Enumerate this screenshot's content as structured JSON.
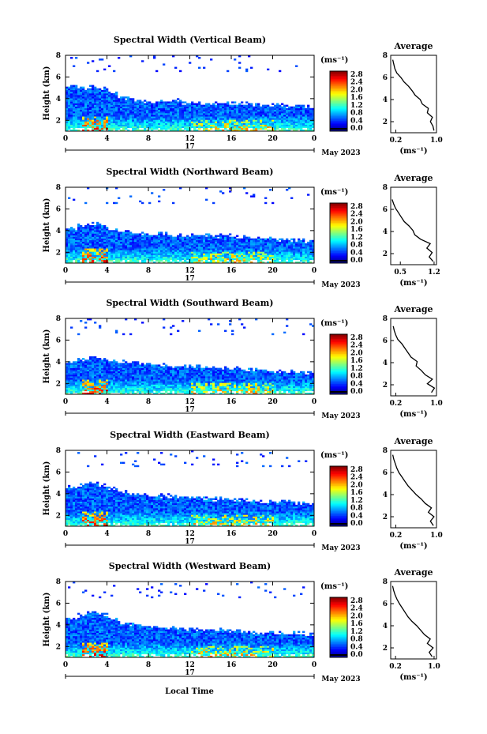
{
  "figure": {
    "xlabel": "Local Time",
    "date_label": "May 2023",
    "day_label": "17",
    "average_title": "Average"
  },
  "chart_data": [
    {
      "type": "heatmap",
      "title": "Spectral Width (Vertical Beam)",
      "ylabel": "Height (km)",
      "xticks": [
        "0",
        "4",
        "8",
        "12",
        "16",
        "20",
        "0"
      ],
      "xlim": [
        0,
        24
      ],
      "yticks": [
        "2",
        "4",
        "6",
        "8"
      ],
      "ylim": [
        1,
        8
      ],
      "colorbar": {
        "unit": "(ms⁻¹)",
        "ticks": [
          "2.8",
          "2.4",
          "2.0",
          "1.6",
          "1.2",
          "0.8",
          "0.4",
          "0.0"
        ]
      },
      "echo_top_km": [
        5.2,
        5.0,
        5.1,
        4.9,
        4.5,
        4.1,
        3.9,
        3.8,
        3.7,
        3.7,
        3.8,
        3.6,
        3.7,
        3.6,
        3.6,
        3.6,
        3.6,
        3.5,
        3.4,
        3.4,
        3.5,
        3.4,
        3.4,
        3.3
      ],
      "profile": {
        "title": "Average",
        "xlabel": "(ms⁻¹)",
        "xticks": [
          "0.2",
          "1.0"
        ],
        "xlim": [
          0.1,
          1.0
        ],
        "yticks": [
          "2",
          "4",
          "6",
          "8"
        ],
        "ylim": [
          1,
          8
        ],
        "height_km": [
          1.2,
          1.6,
          2.0,
          2.4,
          2.8,
          3.2,
          3.6,
          4.0,
          4.4,
          4.8,
          5.2,
          5.6,
          6.0,
          6.4,
          6.8,
          7.2,
          7.6
        ],
        "width": [
          0.95,
          0.93,
          0.88,
          0.92,
          0.82,
          0.84,
          0.72,
          0.68,
          0.58,
          0.52,
          0.45,
          0.36,
          0.3,
          0.22,
          0.18,
          0.16,
          0.14
        ]
      }
    },
    {
      "type": "heatmap",
      "title": "Spectral Width (Northward Beam)",
      "ylabel": "Height (km)",
      "xticks": [
        "0",
        "4",
        "8",
        "12",
        "16",
        "20",
        "0"
      ],
      "xlim": [
        0,
        24
      ],
      "yticks": [
        "2",
        "4",
        "6",
        "8"
      ],
      "ylim": [
        1,
        8
      ],
      "colorbar": {
        "unit": "(ms⁻¹)",
        "ticks": [
          "2.8",
          "2.4",
          "2.0",
          "1.6",
          "1.2",
          "0.8",
          "0.4",
          "0.0"
        ]
      },
      "echo_top_km": [
        4.2,
        4.4,
        4.6,
        4.5,
        4.2,
        4.0,
        3.8,
        3.8,
        3.7,
        3.7,
        3.6,
        3.6,
        3.6,
        3.6,
        3.5,
        3.5,
        3.4,
        3.4,
        3.3,
        3.3,
        3.2,
        3.2,
        3.2,
        3.0
      ],
      "profile": {
        "title": "Average",
        "xlabel": "(ms⁻¹)",
        "xticks": [
          "0.5",
          "1.2"
        ],
        "xlim": [
          0.3,
          1.25
        ],
        "yticks": [
          "2",
          "4",
          "6",
          "8"
        ],
        "ylim": [
          1,
          8
        ],
        "height_km": [
          1.3,
          1.7,
          2.1,
          2.5,
          2.9,
          3.3,
          3.7,
          4.1,
          4.5,
          4.9,
          5.3,
          5.7,
          6.1,
          6.5,
          6.9
        ],
        "width": [
          1.18,
          1.1,
          1.16,
          1.05,
          1.12,
          0.92,
          0.8,
          0.76,
          0.68,
          0.58,
          0.52,
          0.46,
          0.4,
          0.36,
          0.33
        ]
      }
    },
    {
      "type": "heatmap",
      "title": "Spectral Width (Southward Beam)",
      "ylabel": "Height (km)",
      "xticks": [
        "0",
        "4",
        "8",
        "12",
        "16",
        "20",
        "0"
      ],
      "xlim": [
        0,
        24
      ],
      "yticks": [
        "2",
        "4",
        "6",
        "8"
      ],
      "ylim": [
        1,
        8
      ],
      "colorbar": {
        "unit": "(ms⁻¹)",
        "ticks": [
          "2.8",
          "2.4",
          "2.0",
          "1.6",
          "1.2",
          "0.8",
          "0.4",
          "0.0"
        ]
      },
      "echo_top_km": [
        4.0,
        4.2,
        4.4,
        4.3,
        4.1,
        4.0,
        3.9,
        3.8,
        3.8,
        3.7,
        3.6,
        3.6,
        3.6,
        3.5,
        3.5,
        3.4,
        3.4,
        3.3,
        3.3,
        3.2,
        3.2,
        3.2,
        3.1,
        3.0
      ],
      "profile": {
        "title": "Average",
        "xlabel": "(ms⁻¹)",
        "xticks": [
          "0.2",
          "1.0"
        ],
        "xlim": [
          0.1,
          1.0
        ],
        "yticks": [
          "2",
          "4",
          "6",
          "8"
        ],
        "ylim": [
          1,
          8
        ],
        "height_km": [
          1.3,
          1.7,
          2.1,
          2.5,
          2.9,
          3.3,
          3.7,
          4.1,
          4.5,
          4.9,
          5.3,
          5.7,
          6.1,
          6.5,
          6.9,
          7.3
        ],
        "width": [
          0.9,
          0.96,
          0.82,
          0.92,
          0.78,
          0.7,
          0.6,
          0.62,
          0.5,
          0.44,
          0.38,
          0.32,
          0.24,
          0.2,
          0.17,
          0.15
        ]
      }
    },
    {
      "type": "heatmap",
      "title": "Spectral Width (Eastward Beam)",
      "ylabel": "Height (km)",
      "xticks": [
        "0",
        "4",
        "8",
        "12",
        "16",
        "20",
        "0"
      ],
      "xlim": [
        0,
        24
      ],
      "yticks": [
        "2",
        "4",
        "6",
        "8"
      ],
      "ylim": [
        1,
        8
      ],
      "colorbar": {
        "unit": "(ms⁻¹)",
        "ticks": [
          "2.8",
          "2.4",
          "2.0",
          "1.6",
          "1.2",
          "0.8",
          "0.4",
          "0.0"
        ]
      },
      "echo_top_km": [
        4.6,
        4.8,
        5.0,
        4.8,
        4.5,
        4.2,
        4.0,
        3.9,
        3.8,
        3.8,
        3.7,
        3.7,
        3.6,
        3.6,
        3.5,
        3.5,
        3.4,
        3.4,
        3.3,
        3.3,
        3.3,
        3.2,
        3.2,
        3.1
      ],
      "profile": {
        "title": "Average",
        "xlabel": "(ms⁻¹)",
        "xticks": [
          "0.2",
          "1.0"
        ],
        "xlim": [
          0.1,
          1.0
        ],
        "yticks": [
          "2",
          "4",
          "6",
          "8"
        ],
        "ylim": [
          1,
          8
        ],
        "height_km": [
          1.2,
          1.6,
          2.0,
          2.4,
          2.8,
          3.2,
          3.6,
          4.0,
          4.4,
          4.8,
          5.2,
          5.6,
          6.0,
          6.4,
          6.8,
          7.2,
          7.6
        ],
        "width": [
          0.94,
          0.88,
          0.95,
          0.84,
          0.9,
          0.78,
          0.7,
          0.6,
          0.52,
          0.44,
          0.38,
          0.32,
          0.26,
          0.22,
          0.19,
          0.16,
          0.14
        ]
      }
    },
    {
      "type": "heatmap",
      "title": "Spectral Width (Westward Beam)",
      "ylabel": "Height (km)",
      "xticks": [
        "0",
        "4",
        "8",
        "12",
        "16",
        "20",
        "0"
      ],
      "xlim": [
        0,
        24
      ],
      "yticks": [
        "2",
        "4",
        "6",
        "8"
      ],
      "ylim": [
        1,
        8
      ],
      "colorbar": {
        "unit": "(ms⁻¹)",
        "ticks": [
          "2.8",
          "2.4",
          "2.0",
          "1.6",
          "1.2",
          "0.8",
          "0.4",
          "0.0"
        ]
      },
      "echo_top_km": [
        4.6,
        4.9,
        5.1,
        5.0,
        4.6,
        4.2,
        4.0,
        3.9,
        3.8,
        3.7,
        3.7,
        3.6,
        3.6,
        3.5,
        3.5,
        3.5,
        3.4,
        3.4,
        3.3,
        3.3,
        3.3,
        3.2,
        3.2,
        3.1
      ],
      "profile": {
        "title": "Average",
        "xlabel": "(ms⁻¹)",
        "xticks": [
          "0.2",
          "1.0"
        ],
        "xlim": [
          0.1,
          1.05
        ],
        "yticks": [
          "2",
          "4",
          "6",
          "8"
        ],
        "ylim": [
          1,
          8
        ],
        "height_km": [
          1.2,
          1.6,
          2.0,
          2.4,
          2.8,
          3.2,
          3.6,
          4.0,
          4.4,
          4.8,
          5.2,
          5.6,
          6.0,
          6.4,
          6.8,
          7.2,
          7.6
        ],
        "width": [
          0.96,
          0.9,
          0.98,
          0.86,
          0.92,
          0.8,
          0.72,
          0.64,
          0.54,
          0.46,
          0.4,
          0.34,
          0.28,
          0.23,
          0.19,
          0.16,
          0.14
        ]
      }
    }
  ]
}
